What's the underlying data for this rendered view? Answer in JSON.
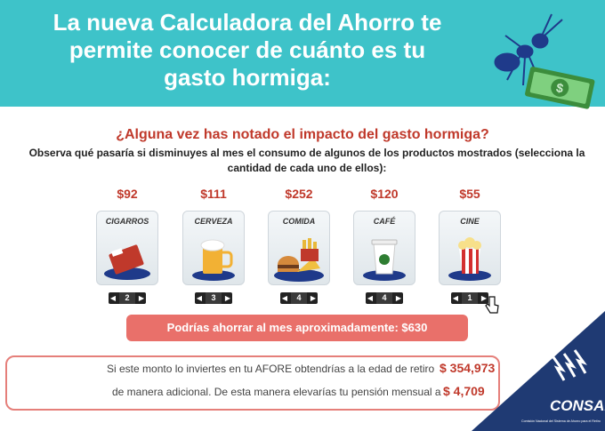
{
  "banner": {
    "title_line1": "La nueva Calculadora del Ahorro te",
    "title_line2": "permite conocer de cuánto es tu",
    "title_line3": "gasto hormiga:"
  },
  "calculator": {
    "question": "¿Alguna vez has notado el impacto del gasto hormiga?",
    "instructions": "Observa qué pasaría si disminuyes al mes el consumo de algunos de los productos mostrados (selecciona la cantidad de cada uno de ellos):",
    "products": [
      {
        "price": "$92",
        "label": "CIGARROS",
        "qty": "2",
        "icon": "cigarettes-icon"
      },
      {
        "price": "$111",
        "label": "CERVEZA",
        "qty": "3",
        "icon": "beer-icon"
      },
      {
        "price": "$252",
        "label": "COMIDA",
        "qty": "4",
        "icon": "food-icon"
      },
      {
        "price": "$120",
        "label": "CAFÉ",
        "qty": "4",
        "icon": "coffee-icon"
      },
      {
        "price": "$55",
        "label": "CINE",
        "qty": "1",
        "icon": "popcorn-icon"
      }
    ],
    "savings_label": "Podrías ahorrar al mes aproximadamente:",
    "savings_amount": "$630",
    "result_line1": "Si este monto lo inviertes en tu AFORE obtendrías a la edad de retiro",
    "result_amount1": "$ 354,973",
    "result_line2": "de manera adicional. De esta manera elevarías tu pensión mensual a",
    "result_amount2": "$ 4,709"
  },
  "logo": {
    "name": "CONSAR",
    "tagline": "Comisión Nacional del Sistema de Ahorro para el Retiro"
  },
  "colors": {
    "banner": "#3ec3c9",
    "accent_red": "#c0392b",
    "savings_bar": "#e9706a",
    "logo_blue": "#1f3a73"
  }
}
